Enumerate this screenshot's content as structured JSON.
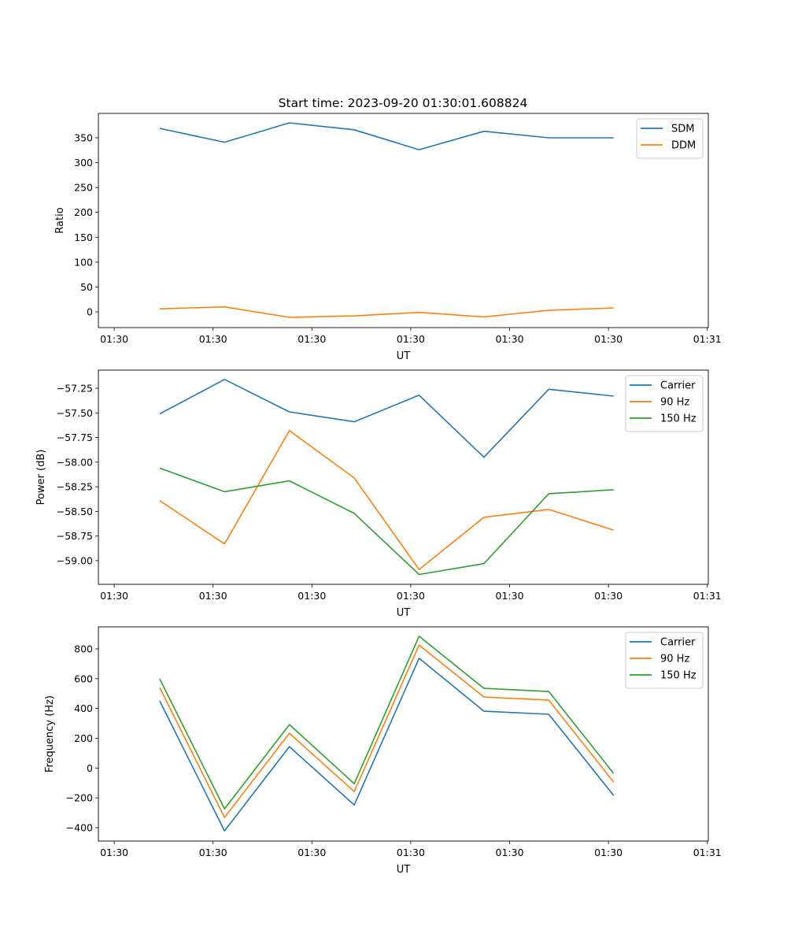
{
  "title": "Start time: 2023-09-20 01:30:01.608824",
  "colors": {
    "blue": "#1f77b4",
    "orange": "#ff7f0e",
    "green": "#2ca02c"
  },
  "chart_data": [
    {
      "type": "line",
      "xlabel": "UT",
      "ylabel": "Ratio",
      "x_unit": "seconds after 01:30:00",
      "x": [
        4.6,
        11.16,
        17.72,
        24.28,
        30.84,
        37.4,
        43.96,
        50.52
      ],
      "xlim": [
        -1.6,
        60.1
      ],
      "xticks": [
        0,
        10,
        20,
        30,
        40,
        50,
        60
      ],
      "xtick_labels": [
        "01:30",
        "01:30",
        "01:30",
        "01:30",
        "01:30",
        "01:30",
        "01:31"
      ],
      "ylim": [
        -31.6,
        399
      ],
      "yticks": [
        0,
        50,
        100,
        150,
        200,
        250,
        300,
        350
      ],
      "ytick_labels": [
        "0",
        "50",
        "100",
        "150",
        "200",
        "250",
        "300",
        "350"
      ],
      "legend": "top-right",
      "series": [
        {
          "name": "SDM",
          "color": "#1f77b4",
          "values": [
            369,
            341,
            380,
            366,
            326,
            363,
            350,
            350
          ]
        },
        {
          "name": "DDM",
          "color": "#ff7f0e",
          "values": [
            6,
            10,
            -11,
            -8,
            -1,
            -10,
            3,
            8
          ]
        }
      ]
    },
    {
      "type": "line",
      "xlabel": "UT",
      "ylabel": "Power (dB)",
      "x_unit": "seconds after 01:30:00",
      "x": [
        4.6,
        11.16,
        17.72,
        24.28,
        30.84,
        37.4,
        43.96,
        50.52
      ],
      "xlim": [
        -1.6,
        60.1
      ],
      "xticks": [
        0,
        10,
        20,
        30,
        40,
        50,
        60
      ],
      "xtick_labels": [
        "01:30",
        "01:30",
        "01:30",
        "01:30",
        "01:30",
        "01:30",
        "01:31"
      ],
      "ylim": [
        -59.24,
        -57.066
      ],
      "yticks": [
        -59.0,
        -58.75,
        -58.5,
        -58.25,
        -58.0,
        -57.75,
        -57.5,
        -57.25
      ],
      "ytick_labels": [
        "−59.00",
        "−58.75",
        "−58.50",
        "−58.25",
        "−58.00",
        "−57.75",
        "−57.50",
        "−57.25"
      ],
      "legend": "top-right",
      "series": [
        {
          "name": "Carrier",
          "color": "#1f77b4",
          "values": [
            -57.51,
            -57.16,
            -57.49,
            -57.59,
            -57.32,
            -57.95,
            -57.26,
            -57.33
          ]
        },
        {
          "name": "90 Hz",
          "color": "#ff7f0e",
          "values": [
            -58.39,
            -58.83,
            -57.68,
            -58.16,
            -59.09,
            -58.56,
            -58.48,
            -58.69
          ]
        },
        {
          "name": "150 Hz",
          "color": "#2ca02c",
          "values": [
            -58.06,
            -58.3,
            -58.19,
            -58.52,
            -59.14,
            -59.03,
            -58.32,
            -58.28
          ]
        }
      ]
    },
    {
      "type": "line",
      "xlabel": "UT",
      "ylabel": "Frequency (Hz)",
      "x_unit": "seconds after 01:30:00",
      "x": [
        4.6,
        11.16,
        17.72,
        24.28,
        30.84,
        37.4,
        43.96,
        50.52
      ],
      "xlim": [
        -1.6,
        60.1
      ],
      "xticks": [
        0,
        10,
        20,
        30,
        40,
        50,
        60
      ],
      "xtick_labels": [
        "01:30",
        "01:30",
        "01:30",
        "01:30",
        "01:30",
        "01:30",
        "01:31"
      ],
      "ylim": [
        -490,
        948
      ],
      "yticks": [
        -400,
        -200,
        0,
        200,
        400,
        600,
        800
      ],
      "ytick_labels": [
        "−400",
        "−200",
        "0",
        "200",
        "400",
        "600",
        "800"
      ],
      "legend": "top-right",
      "series": [
        {
          "name": "Carrier",
          "color": "#1f77b4",
          "values": [
            451,
            -422,
            144,
            -248,
            737,
            382,
            361,
            -184
          ]
        },
        {
          "name": "90 Hz",
          "color": "#ff7f0e",
          "values": [
            541,
            -332,
            234,
            -158,
            826,
            477,
            456,
            -94
          ]
        },
        {
          "name": "150 Hz",
          "color": "#2ca02c",
          "values": [
            599,
            -274,
            292,
            -105,
            885,
            535,
            514,
            -36
          ]
        }
      ]
    }
  ]
}
